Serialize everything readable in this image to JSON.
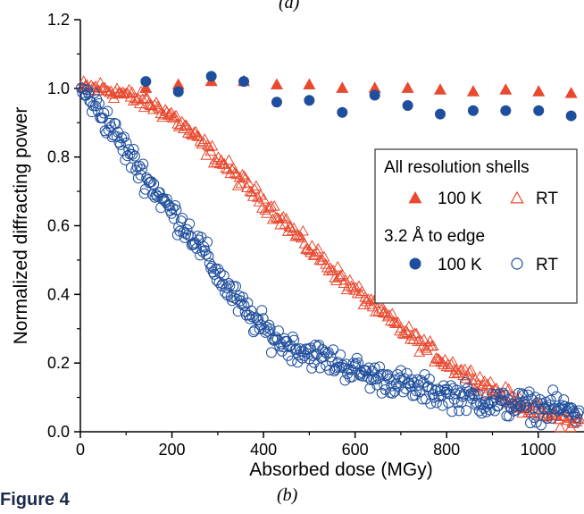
{
  "labels": {
    "top_panel": "(a)",
    "bottom_panel": "(b)",
    "figure": "Figure 4"
  },
  "chart_data": {
    "type": "scatter",
    "xlabel": "Absorbed dose (MGy)",
    "ylabel": "Normalized diffracting power",
    "xlim": [
      0,
      1100
    ],
    "ylim": [
      0,
      1.2
    ],
    "x_ticks": [
      "0",
      "200",
      "400",
      "600",
      "800",
      "1000"
    ],
    "y_ticks": [
      "0.0",
      "0.2",
      "0.4",
      "0.6",
      "0.8",
      "1.0",
      "1.2"
    ],
    "grid": false,
    "legend": {
      "placement": "right",
      "group1_title": "All resolution shells",
      "group2_title": "3.2 Å to edge",
      "label_100k": "100 K",
      "label_rt": "RT"
    },
    "colors": {
      "all_shells": "#e8492f",
      "edge": "#1f4e9c"
    },
    "series": [
      {
        "group": "All resolution shells",
        "name": "100 K",
        "marker": "filled-triangle",
        "x": [
          143,
          214,
          286,
          357,
          429,
          500,
          572,
          643,
          715,
          786,
          858,
          929,
          1001,
          1072
        ],
        "y": [
          1.0,
          1.01,
          1.02,
          1.02,
          1.01,
          1.01,
          1.0,
          1.0,
          1.0,
          0.995,
          0.99,
          0.995,
          0.99,
          0.985
        ]
      },
      {
        "group": "3.2 Å to edge",
        "name": "100 K",
        "marker": "filled-circle",
        "x": [
          143,
          214,
          286,
          357,
          429,
          500,
          572,
          643,
          715,
          786,
          858,
          929,
          1001,
          1072
        ],
        "y": [
          1.02,
          0.99,
          1.035,
          1.02,
          0.96,
          0.965,
          0.93,
          0.98,
          0.95,
          0.925,
          0.935,
          0.935,
          0.935,
          0.92
        ]
      },
      {
        "group": "All resolution shells",
        "name": "RT",
        "marker": "open-triangle",
        "x": [
          0,
          40,
          80,
          120,
          160,
          200,
          240,
          280,
          320,
          360,
          400,
          440,
          480,
          520,
          560,
          600,
          640,
          680,
          720,
          760,
          800,
          840,
          880,
          920,
          960,
          1000,
          1040,
          1080
        ],
        "y": [
          1.0,
          1.0,
          0.99,
          0.97,
          0.95,
          0.92,
          0.87,
          0.82,
          0.77,
          0.72,
          0.67,
          0.62,
          0.56,
          0.51,
          0.46,
          0.41,
          0.37,
          0.32,
          0.28,
          0.24,
          0.2,
          0.17,
          0.14,
          0.11,
          0.08,
          0.06,
          0.04,
          0.03
        ],
        "spread": 0.035
      },
      {
        "group": "3.2 Å to edge",
        "name": "RT",
        "marker": "open-circle",
        "x": [
          0,
          40,
          80,
          120,
          160,
          200,
          240,
          280,
          320,
          360,
          400,
          440,
          480,
          520,
          560,
          600,
          640,
          680,
          720,
          760,
          800,
          840,
          880,
          920,
          960,
          1000,
          1040,
          1080
        ],
        "y": [
          1.0,
          0.94,
          0.86,
          0.78,
          0.71,
          0.64,
          0.58,
          0.5,
          0.42,
          0.35,
          0.3,
          0.26,
          0.24,
          0.22,
          0.2,
          0.18,
          0.16,
          0.15,
          0.13,
          0.12,
          0.11,
          0.1,
          0.09,
          0.08,
          0.08,
          0.07,
          0.07,
          0.06
        ],
        "spread": 0.06
      }
    ]
  }
}
